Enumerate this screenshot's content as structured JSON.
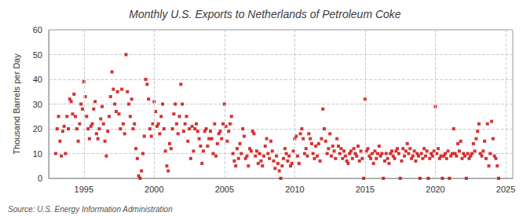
{
  "chart_data": {
    "type": "scatter",
    "title": "Monthly U.S. Exports to Netherlands of Petroleum Coke",
    "ylabel": "Thousand Barrels per Day",
    "annotations": [
      "Source: U.S. Energy Information Administration"
    ],
    "color": "#cc0000",
    "marker": "square",
    "grid": true,
    "xlim": [
      1992.5,
      2025.5
    ],
    "xticks": [
      1995,
      2000,
      2005,
      2010,
      2015,
      2020,
      2025
    ],
    "ylim": [
      0,
      60
    ],
    "yticks": [
      0,
      10,
      20,
      30,
      40,
      50,
      60
    ],
    "x": [
      1993.0,
      1993.1,
      1993.2,
      1993.3,
      1993.4,
      1993.5,
      1993.6,
      1993.7,
      1993.8,
      1993.9,
      1994.0,
      1994.1,
      1994.2,
      1994.3,
      1994.4,
      1994.5,
      1994.6,
      1994.7,
      1994.8,
      1994.9,
      1995.0,
      1995.1,
      1995.2,
      1995.3,
      1995.4,
      1995.5,
      1995.6,
      1995.7,
      1995.8,
      1995.9,
      1996.0,
      1996.1,
      1996.2,
      1996.3,
      1996.4,
      1996.5,
      1996.6,
      1996.7,
      1996.8,
      1996.9,
      1997.0,
      1997.1,
      1997.2,
      1997.3,
      1997.4,
      1997.5,
      1997.6,
      1997.7,
      1997.8,
      1997.9,
      1998.0,
      1998.1,
      1998.2,
      1998.3,
      1998.4,
      1998.5,
      1998.6,
      1998.7,
      1998.8,
      1998.9,
      1999.0,
      1999.1,
      1999.2,
      1999.3,
      1999.4,
      1999.5,
      1999.6,
      1999.7,
      1999.8,
      1999.9,
      2000.0,
      2000.1,
      2000.2,
      2000.3,
      2000.4,
      2000.5,
      2000.6,
      2000.7,
      2000.8,
      2000.9,
      2001.0,
      2001.1,
      2001.2,
      2001.3,
      2001.4,
      2001.5,
      2001.6,
      2001.7,
      2001.8,
      2001.9,
      2002.0,
      2002.1,
      2002.2,
      2002.3,
      2002.4,
      2002.5,
      2002.6,
      2002.7,
      2002.8,
      2002.9,
      2003.0,
      2003.1,
      2003.2,
      2003.3,
      2003.4,
      2003.5,
      2003.6,
      2003.7,
      2003.8,
      2003.9,
      2004.0,
      2004.1,
      2004.2,
      2004.3,
      2004.4,
      2004.5,
      2004.6,
      2004.7,
      2004.8,
      2004.9,
      2005.0,
      2005.1,
      2005.2,
      2005.3,
      2005.4,
      2005.5,
      2005.6,
      2005.7,
      2005.8,
      2005.9,
      2006.0,
      2006.1,
      2006.2,
      2006.3,
      2006.4,
      2006.5,
      2006.6,
      2006.7,
      2006.8,
      2006.9,
      2007.0,
      2007.1,
      2007.2,
      2007.3,
      2007.4,
      2007.5,
      2007.6,
      2007.7,
      2007.8,
      2007.9,
      2008.0,
      2008.1,
      2008.2,
      2008.3,
      2008.4,
      2008.5,
      2008.6,
      2008.7,
      2008.8,
      2008.9,
      2009.0,
      2009.1,
      2009.2,
      2009.3,
      2009.4,
      2009.5,
      2009.6,
      2009.7,
      2009.8,
      2009.9,
      2010.0,
      2010.1,
      2010.2,
      2010.3,
      2010.4,
      2010.5,
      2010.6,
      2010.7,
      2010.8,
      2010.9,
      2011.0,
      2011.1,
      2011.2,
      2011.3,
      2011.4,
      2011.5,
      2011.6,
      2011.7,
      2011.8,
      2011.9,
      2012.0,
      2012.1,
      2012.2,
      2012.3,
      2012.4,
      2012.5,
      2012.6,
      2012.7,
      2012.8,
      2012.9,
      2013.0,
      2013.1,
      2013.2,
      2013.3,
      2013.4,
      2013.5,
      2013.6,
      2013.7,
      2013.8,
      2013.9,
      2014.0,
      2014.1,
      2014.2,
      2014.3,
      2014.4,
      2014.5,
      2014.6,
      2014.7,
      2014.8,
      2014.9,
      2015.0,
      2015.1,
      2015.2,
      2015.3,
      2015.4,
      2015.5,
      2015.6,
      2015.7,
      2015.8,
      2015.9,
      2016.0,
      2016.1,
      2016.2,
      2016.3,
      2016.4,
      2016.5,
      2016.6,
      2016.7,
      2016.8,
      2016.9,
      2017.0,
      2017.1,
      2017.2,
      2017.3,
      2017.4,
      2017.5,
      2017.6,
      2017.7,
      2017.8,
      2017.9,
      2018.0,
      2018.1,
      2018.2,
      2018.3,
      2018.4,
      2018.5,
      2018.6,
      2018.7,
      2018.8,
      2018.9,
      2019.0,
      2019.1,
      2019.2,
      2019.3,
      2019.4,
      2019.5,
      2019.6,
      2019.7,
      2019.8,
      2019.9,
      2020.0,
      2020.1,
      2020.2,
      2020.3,
      2020.4,
      2020.5,
      2020.6,
      2020.7,
      2020.8,
      2020.9,
      2021.0,
      2021.1,
      2021.2,
      2021.3,
      2021.4,
      2021.5,
      2021.6,
      2021.7,
      2021.8,
      2021.9,
      2022.0,
      2022.1,
      2022.2,
      2022.3,
      2022.4,
      2022.5,
      2022.6,
      2022.7,
      2022.8,
      2022.9,
      2023.0,
      2023.1,
      2023.2,
      2023.3,
      2023.4,
      2023.5,
      2023.6,
      2023.7,
      2023.8,
      2023.9,
      2024.0,
      2024.1,
      2024.2,
      2024.3,
      2024.4,
      2024.5
    ],
    "values": [
      10,
      20,
      25,
      15,
      9,
      19,
      21,
      10,
      25,
      20,
      32,
      31,
      26,
      34,
      25,
      20,
      15,
      22,
      30,
      28,
      39,
      33,
      25,
      20,
      16,
      21,
      22,
      28,
      31,
      18,
      16,
      20,
      24,
      29,
      22,
      15,
      9,
      19,
      25,
      33,
      43,
      36,
      30,
      27,
      35,
      26,
      20,
      36,
      22,
      18,
      50,
      35,
      30,
      25,
      32,
      20,
      22,
      12,
      8,
      1,
      0,
      3,
      10,
      17,
      40,
      38,
      32,
      20,
      17,
      22,
      31,
      27,
      21,
      22,
      18,
      25,
      30,
      20,
      11,
      5,
      3,
      14,
      12,
      20,
      26,
      30,
      22,
      18,
      25,
      38,
      30,
      19,
      22,
      25,
      15,
      20,
      8,
      21,
      11,
      20,
      22,
      19,
      16,
      13,
      6,
      11,
      19,
      20,
      13,
      16,
      19,
      16,
      10,
      22,
      9,
      14,
      18,
      19,
      16,
      22,
      30,
      21,
      15,
      19,
      22,
      25,
      10,
      7,
      5,
      12,
      8,
      14,
      10,
      20,
      17,
      8,
      9,
      5,
      12,
      11,
      19,
      18,
      9,
      11,
      6,
      10,
      7,
      5,
      9,
      13,
      16,
      10,
      8,
      15,
      11,
      7,
      4,
      9,
      6,
      3,
      0,
      5,
      8,
      12,
      10,
      7,
      9,
      5,
      6,
      11,
      16,
      17,
      9,
      6,
      18,
      20,
      16,
      10,
      12,
      9,
      18,
      16,
      14,
      10,
      8,
      13,
      9,
      14,
      7,
      16,
      28,
      20,
      15,
      10,
      12,
      18,
      9,
      13,
      11,
      8,
      16,
      13,
      10,
      12,
      8,
      11,
      9,
      7,
      6,
      10,
      11,
      8,
      12,
      10,
      9,
      13,
      7,
      11,
      8,
      0,
      32,
      11,
      12,
      9,
      8,
      10,
      6,
      11,
      8,
      10,
      13,
      9,
      10,
      0,
      7,
      10,
      8,
      6,
      10,
      11,
      9,
      8,
      11,
      12,
      10,
      0,
      7,
      12,
      9,
      11,
      14,
      10,
      12,
      8,
      9,
      11,
      7,
      10,
      9,
      0,
      10,
      8,
      12,
      9,
      11,
      0,
      8,
      10,
      9,
      11,
      29,
      10,
      12,
      8,
      9,
      0,
      9,
      10,
      8,
      11,
      0,
      9,
      10,
      20,
      10,
      9,
      14,
      11,
      15,
      8,
      10,
      9,
      0,
      10,
      8,
      9,
      10,
      14,
      11,
      16,
      19,
      22,
      10,
      9,
      11,
      15,
      8,
      22,
      5,
      10,
      23,
      16,
      9,
      8,
      5,
      0
    ]
  }
}
